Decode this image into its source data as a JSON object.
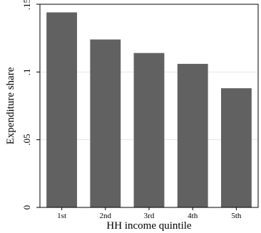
{
  "chart_data": {
    "type": "bar",
    "categories": [
      "1st",
      "2nd",
      "3rd",
      "4th",
      "5th"
    ],
    "values": [
      0.144,
      0.124,
      0.114,
      0.106,
      0.088
    ],
    "xlabel": "HH income quintile",
    "ylabel": "Expenditure share",
    "ylim": [
      0,
      0.15
    ],
    "yticks": [
      0,
      0.05,
      0.1,
      0.15
    ],
    "ytick_labels": [
      "0",
      ".05",
      ".1",
      ".15"
    ],
    "grid": true,
    "bar_color": "#616161",
    "grid_color": "#e6e6e6"
  }
}
